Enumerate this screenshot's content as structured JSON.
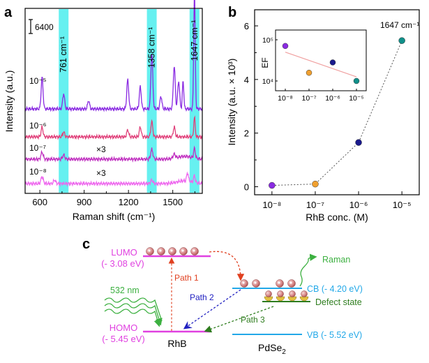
{
  "panels": {
    "a": "a",
    "b": "b",
    "c": "c"
  },
  "chart_data": [
    {
      "type": "line",
      "panel": "a",
      "xlabel": "Raman shift (cm⁻¹)",
      "ylabel": "Intensity (a.u.)",
      "xlim": [
        500,
        1700
      ],
      "xticks": [
        600,
        900,
        1200,
        1500
      ],
      "scale_bar": "6400",
      "highlight_bands": [
        {
          "center": 761,
          "label": "761 cm⁻¹"
        },
        {
          "center": 1358,
          "label": "1358 cm⁻¹"
        },
        {
          "center": 1647,
          "label": "1647 cm⁻¹"
        }
      ],
      "colors": {
        "band": "#66f0f0"
      },
      "series": [
        {
          "name": "10⁻⁵",
          "color": "#8a2be2",
          "multiplier": "",
          "peaks": [
            [
              615,
              45
            ],
            [
              761,
              22
            ],
            [
              930,
              12
            ],
            [
              1195,
              42
            ],
            [
              1280,
              32
            ],
            [
              1358,
              80
            ],
            [
              1420,
              18
            ],
            [
              1510,
              62
            ],
            [
              1540,
              40
            ],
            [
              1570,
              40
            ],
            [
              1647,
              170
            ]
          ]
        },
        {
          "name": "10⁻⁶",
          "color": "#e0407a",
          "multiplier": "",
          "peaks": [
            [
              615,
              14
            ],
            [
              761,
              7
            ],
            [
              1195,
              10
            ],
            [
              1280,
              14
            ],
            [
              1358,
              22
            ],
            [
              1510,
              14
            ],
            [
              1647,
              28
            ]
          ]
        },
        {
          "name": "10⁻⁷",
          "color": "#c030c0",
          "multiplier": "×3",
          "peaks": [
            [
              615,
              10
            ],
            [
              761,
              6
            ],
            [
              1358,
              14
            ],
            [
              1510,
              6
            ],
            [
              1647,
              14
            ]
          ]
        },
        {
          "name": "10⁻⁸",
          "color": "#ee66ee",
          "multiplier": "×3",
          "peaks": [
            [
              615,
              10
            ],
            [
              700,
              5
            ],
            [
              1358,
              5
            ],
            [
              1600,
              12
            ],
            [
              1647,
              10
            ]
          ]
        }
      ]
    },
    {
      "type": "scatter",
      "panel": "b",
      "xlabel": "RhB conc. (M)",
      "ylabel": "Intensity (a.u. × 10³)",
      "annotation": "1647 cm⁻¹",
      "x_scale": "log",
      "xlim_exp": [
        -8.4,
        -4.6
      ],
      "ylim": [
        -0.3,
        6.6
      ],
      "xtick_labels": [
        "10⁻⁸",
        "10⁻⁷",
        "10⁻⁶",
        "10⁻⁵"
      ],
      "yticks": [
        0,
        2,
        4,
        6
      ],
      "points": [
        {
          "exp": -8,
          "y": 0.05,
          "color": "#8a2be2"
        },
        {
          "exp": -7,
          "y": 0.1,
          "color": "#f0a030"
        },
        {
          "exp": -6,
          "y": 1.65,
          "color": "#1a1a8c"
        },
        {
          "exp": -5,
          "y": 5.45,
          "color": "#10908a"
        }
      ],
      "inset": {
        "ylabel": "EF",
        "x_scale": "log",
        "y_scale": "log",
        "xtick_labels": [
          "10⁻⁸",
          "10⁻⁷",
          "10⁻⁶",
          "10⁻⁵"
        ],
        "ytick_labels": [
          "10⁴",
          "10⁵"
        ],
        "points": [
          {
            "exp": -8,
            "ef_exp": 4.85,
            "color": "#8a2be2"
          },
          {
            "exp": -7,
            "ef_exp": 4.2,
            "color": "#f0a030"
          },
          {
            "exp": -6,
            "ef_exp": 4.45,
            "color": "#1a1a8c"
          },
          {
            "exp": -5,
            "ef_exp": 4.0,
            "color": "#10908a"
          }
        ],
        "fit_line": {
          "from": [
            -8,
            4.7
          ],
          "to": [
            -5,
            4.1
          ],
          "color": "#f0a0a0"
        }
      }
    }
  ],
  "diagram": {
    "lumo": "LUMO",
    "lumo_ev": "(- 3.08 eV)",
    "homo": "HOMO",
    "homo_ev": "(- 5.45 eV)",
    "rhb": "RhB",
    "pdse2": "PdSe",
    "pdse2_sub": "2",
    "cb": "CB (- 4.20 eV)",
    "vb": "VB (- 5.52 eV)",
    "defect": "Defect state",
    "path1": "Path 1",
    "path2": "Path 2",
    "path3": "Path 3",
    "laser": "532 nm",
    "raman": "Raman",
    "colors": {
      "magenta": "#e040e0",
      "blue": "#22a8e8",
      "green": "#2e7d1e",
      "red": "#e04020",
      "navy": "#2020c0",
      "laser": "#3cb040"
    }
  }
}
